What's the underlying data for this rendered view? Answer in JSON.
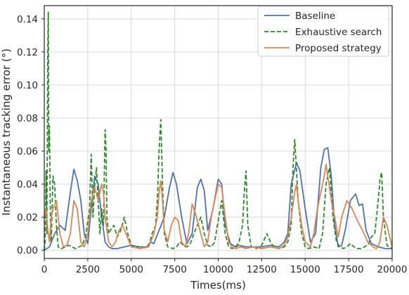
{
  "chart_data": {
    "type": "line",
    "title": "",
    "xlabel": "Times(ms)",
    "ylabel": "Instantaneous tracking error (°)",
    "xlim": [
      0,
      20000
    ],
    "ylim": [
      -0.005,
      0.148
    ],
    "x_ticks": [
      0,
      2500,
      5000,
      7500,
      10000,
      12500,
      15000,
      17500,
      20000
    ],
    "x_tick_labels": [
      "0",
      "2500",
      "5000",
      "7500",
      "10000",
      "12500",
      "15000",
      "17500",
      "20000"
    ],
    "y_ticks": [
      0.0,
      0.02,
      0.04,
      0.06,
      0.08,
      0.1,
      0.12,
      0.14
    ],
    "y_tick_labels": [
      "0.00",
      "0.02",
      "0.04",
      "0.06",
      "0.08",
      "0.10",
      "0.12",
      "0.14"
    ],
    "grid": true,
    "legend_position": "top-right",
    "series": [
      {
        "name": "Baseline",
        "color": "#4c72b0",
        "style": "solid",
        "x": [
          0,
          300,
          600,
          900,
          1200,
          1500,
          1700,
          1900,
          2100,
          2300,
          2500,
          2700,
          2900,
          3100,
          3300,
          3500,
          3700,
          3900,
          4200,
          4600,
          5000,
          5500,
          5900,
          6100,
          6300,
          6600,
          6900,
          7200,
          7400,
          7600,
          7900,
          8200,
          8500,
          8800,
          9000,
          9200,
          9400,
          9700,
          10000,
          10200,
          10400,
          10700,
          11000,
          11200,
          11600,
          12000,
          12500,
          13000,
          13500,
          13800,
          14000,
          14200,
          14500,
          14700,
          15000,
          15300,
          15600,
          15900,
          16100,
          16300,
          16500,
          16700,
          16900,
          17100,
          17300,
          17600,
          17900,
          18100,
          18300,
          18500,
          18800,
          19200,
          19600,
          20000
        ],
        "y": [
          0.0,
          0.002,
          0.01,
          0.015,
          0.012,
          0.035,
          0.049,
          0.042,
          0.03,
          0.01,
          0.004,
          0.025,
          0.045,
          0.04,
          0.02,
          0.005,
          0.002,
          0.001,
          0.001,
          0.002,
          0.003,
          0.002,
          0.002,
          0.005,
          0.004,
          0.012,
          0.02,
          0.038,
          0.047,
          0.04,
          0.02,
          0.004,
          0.01,
          0.038,
          0.043,
          0.036,
          0.012,
          0.025,
          0.043,
          0.04,
          0.015,
          0.004,
          0.002,
          0.003,
          0.002,
          0.002,
          0.002,
          0.003,
          0.002,
          0.005,
          0.01,
          0.04,
          0.053,
          0.048,
          0.025,
          0.005,
          0.01,
          0.05,
          0.061,
          0.062,
          0.045,
          0.015,
          0.002,
          0.003,
          0.012,
          0.03,
          0.034,
          0.027,
          0.028,
          0.012,
          0.004,
          0.002,
          0.001,
          0.001
        ]
      },
      {
        "name": "Exhaustive search",
        "color": "#2a8a2a",
        "style": "dashed",
        "x": [
          0,
          50,
          100,
          150,
          200,
          230,
          260,
          300,
          350,
          400,
          500,
          600,
          700,
          800,
          900,
          1000,
          1200,
          1400,
          1600,
          1800,
          2000,
          2200,
          2400,
          2600,
          2700,
          2800,
          2900,
          3000,
          3100,
          3200,
          3300,
          3400,
          3500,
          3550,
          3600,
          3700,
          3800,
          4000,
          4200,
          4400,
          4600,
          4800,
          5000,
          5500,
          6000,
          6200,
          6400,
          6500,
          6600,
          6700,
          6800,
          6900,
          7100,
          7400,
          7600,
          7800,
          8000,
          8200,
          8400,
          8600,
          8800,
          9000,
          9200,
          9400,
          9600,
          9800,
          10000,
          10200,
          10400,
          10600,
          10800,
          11000,
          11200,
          11400,
          11500,
          11600,
          11700,
          11900,
          12200,
          12500,
          12800,
          13000,
          13200,
          13500,
          13800,
          14000,
          14200,
          14300,
          14400,
          14600,
          14800,
          15000,
          15200,
          15500,
          15800,
          16000,
          16200,
          16400,
          16600,
          16800,
          17000,
          17200,
          17400,
          17600,
          17800,
          18000,
          18200,
          18400,
          18600,
          18800,
          19000,
          19200,
          19300,
          19400,
          19500,
          19700,
          20000
        ],
        "y": [
          0.0,
          0.005,
          0.048,
          0.01,
          0.12,
          0.144,
          0.06,
          0.075,
          0.02,
          0.005,
          0.045,
          0.04,
          0.015,
          0.002,
          0.001,
          0.001,
          0.002,
          0.003,
          0.002,
          0.001,
          0.002,
          0.003,
          0.01,
          0.025,
          0.058,
          0.02,
          0.04,
          0.05,
          0.03,
          0.01,
          0.025,
          0.015,
          0.073,
          0.06,
          0.02,
          0.01,
          0.012,
          0.015,
          0.008,
          0.012,
          0.02,
          0.01,
          0.003,
          0.001,
          0.002,
          0.01,
          0.015,
          0.03,
          0.06,
          0.079,
          0.04,
          0.01,
          0.002,
          0.001,
          0.002,
          0.005,
          0.003,
          0.002,
          0.004,
          0.01,
          0.015,
          0.02,
          0.01,
          0.003,
          0.002,
          0.005,
          0.018,
          0.03,
          0.01,
          0.002,
          0.001,
          0.002,
          0.005,
          0.015,
          0.035,
          0.048,
          0.015,
          0.002,
          0.001,
          0.003,
          0.01,
          0.005,
          0.002,
          0.001,
          0.002,
          0.005,
          0.015,
          0.05,
          0.067,
          0.03,
          0.01,
          0.002,
          0.001,
          0.002,
          0.001,
          0.01,
          0.04,
          0.05,
          0.02,
          0.005,
          0.002,
          0.001,
          0.002,
          0.004,
          0.002,
          0.001,
          0.001,
          0.002,
          0.003,
          0.008,
          0.01,
          0.03,
          0.043,
          0.047,
          0.02,
          0.003,
          0.001
        ]
      },
      {
        "name": "Proposed strategy",
        "color": "#dd8452",
        "style": "solid",
        "x": [
          0,
          100,
          200,
          300,
          400,
          500,
          700,
          900,
          1100,
          1300,
          1500,
          1700,
          1900,
          2100,
          2300,
          2500,
          2700,
          2900,
          3100,
          3300,
          3400,
          3500,
          3700,
          3900,
          4100,
          4300,
          4500,
          4700,
          5000,
          5500,
          6000,
          6300,
          6500,
          6600,
          6700,
          6800,
          6900,
          7100,
          7300,
          7500,
          7700,
          7900,
          8100,
          8300,
          8500,
          8700,
          9000,
          9200,
          9400,
          9600,
          9800,
          10000,
          10200,
          10400,
          10600,
          10800,
          11000,
          11300,
          11600,
          12000,
          12500,
          13000,
          13500,
          13800,
          14000,
          14200,
          14400,
          14500,
          14600,
          14800,
          15000,
          15300,
          15500,
          15700,
          15900,
          16100,
          16200,
          16300,
          16400,
          16500,
          16700,
          16900,
          17100,
          17400,
          17700,
          18000,
          18300,
          18600,
          18900,
          19100,
          19300,
          19500,
          19700,
          20000
        ],
        "y": [
          0.02,
          0.025,
          0.012,
          0.005,
          0.02,
          0.025,
          0.03,
          0.01,
          0.002,
          0.003,
          0.01,
          0.03,
          0.025,
          0.005,
          0.002,
          0.01,
          0.03,
          0.038,
          0.03,
          0.04,
          0.035,
          0.02,
          0.005,
          0.002,
          0.005,
          0.012,
          0.015,
          0.01,
          0.002,
          0.001,
          0.002,
          0.01,
          0.02,
          0.035,
          0.042,
          0.03,
          0.012,
          0.005,
          0.015,
          0.02,
          0.018,
          0.005,
          0.002,
          0.01,
          0.028,
          0.022,
          0.01,
          0.002,
          0.005,
          0.02,
          0.03,
          0.04,
          0.038,
          0.02,
          0.005,
          0.002,
          0.001,
          0.002,
          0.001,
          0.002,
          0.001,
          0.002,
          0.001,
          0.003,
          0.008,
          0.02,
          0.035,
          0.04,
          0.03,
          0.015,
          0.005,
          0.002,
          0.01,
          0.025,
          0.035,
          0.045,
          0.052,
          0.045,
          0.038,
          0.03,
          0.02,
          0.008,
          0.02,
          0.03,
          0.025,
          0.018,
          0.012,
          0.005,
          0.002,
          0.001,
          0.005,
          0.02,
          0.015,
          0.002
        ]
      }
    ]
  }
}
